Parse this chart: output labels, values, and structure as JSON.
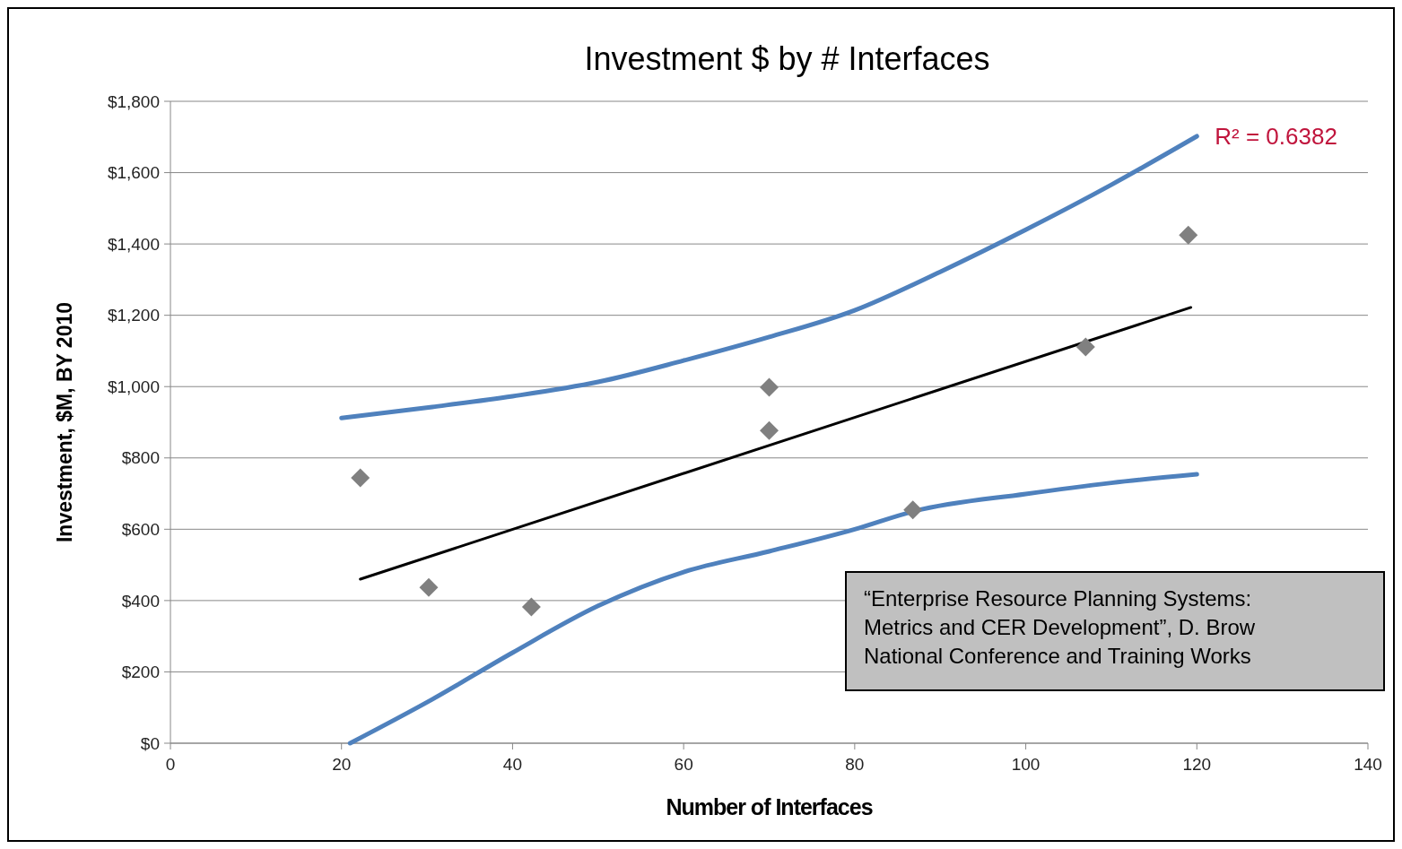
{
  "chart_data": {
    "type": "scatter",
    "title": "Investment $ by # Interfaces",
    "xlabel": "Number of Interfaces",
    "ylabel": "Investment, $M, BY 2010",
    "xlim": [
      0,
      140
    ],
    "xticks": [
      0,
      20,
      40,
      60,
      80,
      100,
      120,
      140
    ],
    "ylim": [
      0,
      1800
    ],
    "yticks": [
      {
        "value": 0,
        "label": "$0"
      },
      {
        "value": 200,
        "label": "$200"
      },
      {
        "value": 400,
        "label": "$400"
      },
      {
        "value": 600,
        "label": "$600"
      },
      {
        "value": 800,
        "label": "$800"
      },
      {
        "value": 1000,
        "label": "$1,000"
      },
      {
        "value": 1200,
        "label": "$1,200"
      },
      {
        "value": 1400,
        "label": "$1,400"
      },
      {
        "value": 1600,
        "label": "$1,600"
      },
      {
        "value": 1800,
        "label": "$1,800"
      }
    ],
    "grid": "y",
    "series": [
      {
        "type": "line",
        "color": "#4f81bd",
        "marker": "none",
        "x": [
          20,
          30.6,
          40,
          50,
          60,
          70,
          80,
          90,
          100,
          110,
          120
        ],
        "values": [
          912,
          943,
          973,
          1013,
          1073,
          1139,
          1214,
          1322,
          1440,
          1566,
          1702
        ]
      },
      {
        "type": "line",
        "color": "#4f81bd",
        "marker": "none",
        "x": [
          21,
          30.6,
          40,
          50,
          60,
          70,
          80,
          87,
          100,
          110,
          120
        ],
        "values": [
          0,
          123,
          254,
          385,
          480,
          538,
          600,
          651,
          699,
          730,
          754
        ]
      },
      {
        "type": "line",
        "color": "#000000",
        "marker": "none",
        "x": [
          22.2,
          119.3
        ],
        "values": [
          460,
          1222
        ]
      },
      {
        "color": "#808080",
        "marker": "diamond",
        "x": [
          22.2,
          30.2,
          42.2,
          70,
          70,
          86.8,
          107,
          119
        ],
        "values": [
          744,
          437,
          382,
          998,
          877,
          654,
          1111,
          1425
        ]
      }
    ],
    "annotations": [
      {
        "text": "R² = 0.6382",
        "x": 120,
        "y": 1702
      },
      "“Enterprise Resource Planning Systems:\nMetrics and CER Development”, D. Brow\nNational Conference and Training Works"
    ]
  }
}
